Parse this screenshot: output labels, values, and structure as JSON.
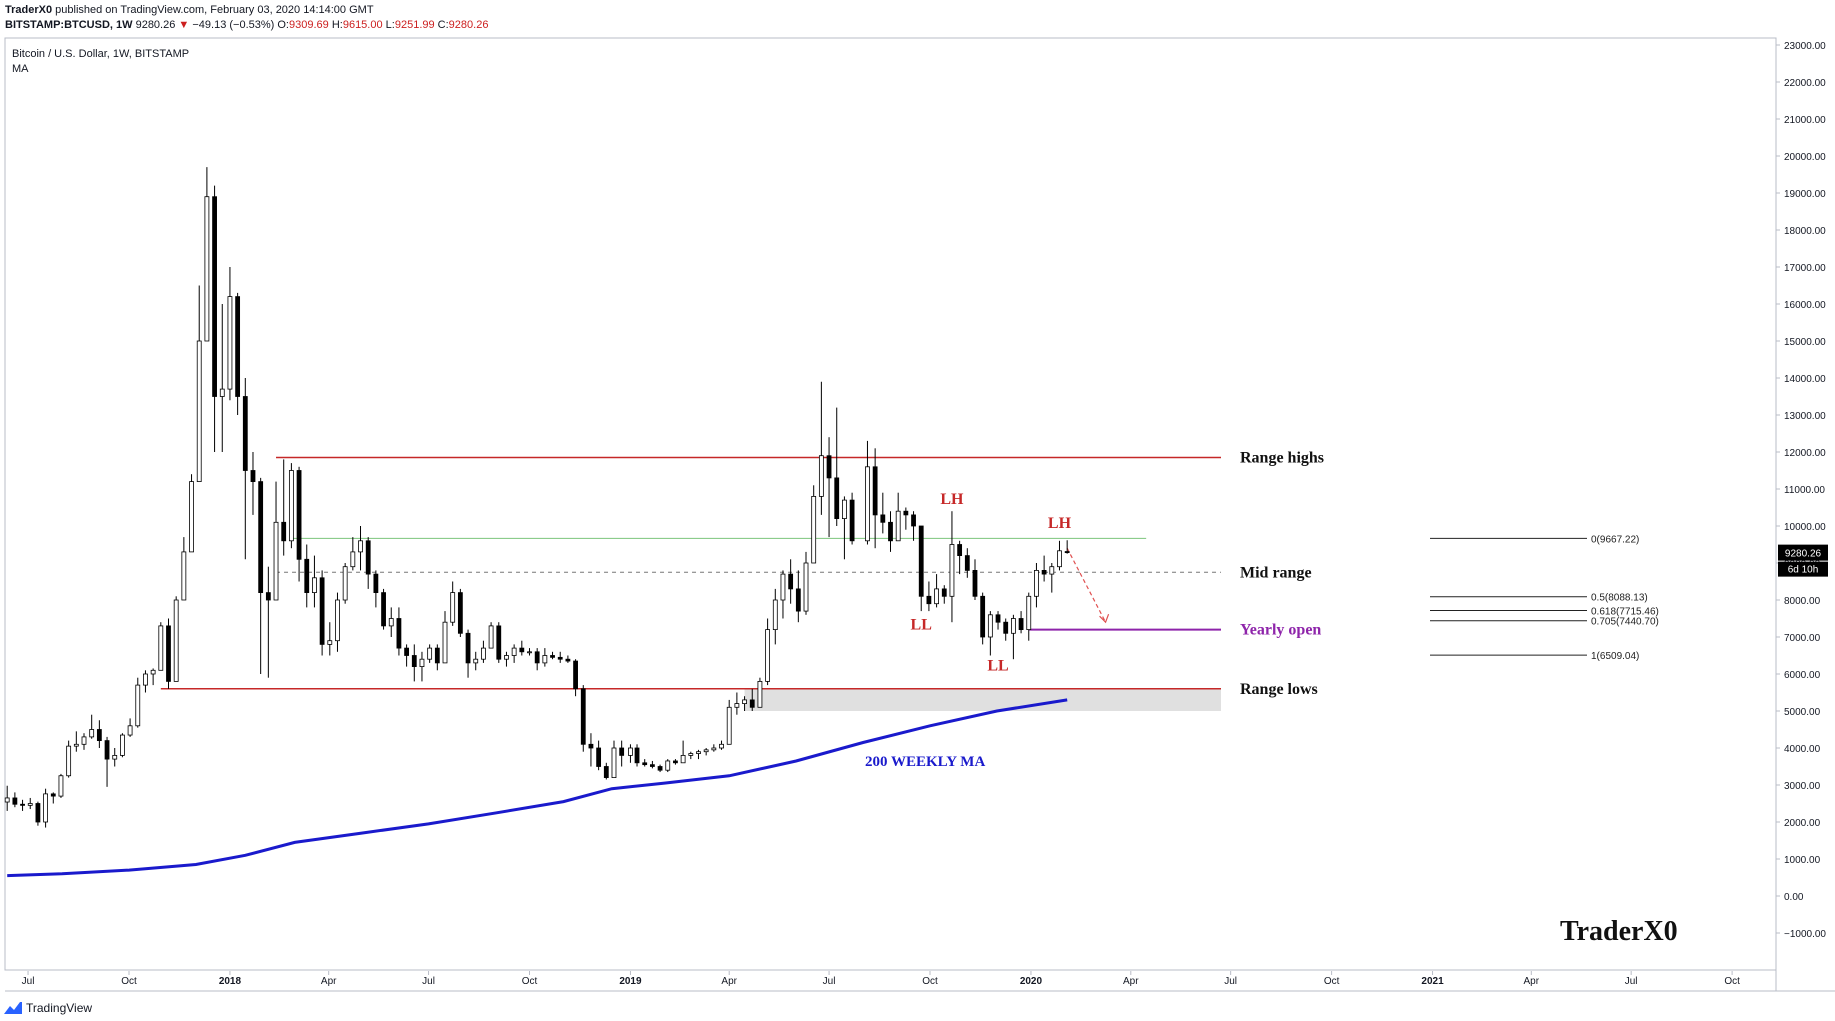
{
  "header": {
    "publisher": "TraderX0",
    "published_text": "published on TradingView.com, February 03, 2020 14:14:00 GMT",
    "symbol": "BITSTAMP:BTCUSD, 1W",
    "last": "9280.26",
    "arrow": "▼",
    "change": "−49.13 (−0.53%)",
    "o_label": "O:",
    "o_value": "9309.69",
    "h_label": "H:",
    "h_value": "9615.00",
    "l_label": "L:",
    "l_value": "9251.99",
    "c_label": "C:",
    "c_value": "9280.26"
  },
  "legend": {
    "title": "Bitcoin / U.S. Dollar, 1W, BITSTAMP",
    "indicator": "MA"
  },
  "footer": {
    "brand": "TradingView"
  },
  "colors": {
    "candle_up": "#ffffff",
    "candle_down": "#000000",
    "wick": "#000000",
    "range_line": "#c62828",
    "yearly_open": "#8e24aa",
    "ma200": "#1a1acc",
    "mid_green": "#7cc47c",
    "support_zone": "#e0e0e0"
  },
  "chart_data": {
    "type": "candlestick",
    "timeframe": "1W",
    "ylim": [
      -1000,
      23000
    ],
    "y_ticks": [
      "23000.00",
      "22000.00",
      "21000.00",
      "20000.00",
      "19000.00",
      "18000.00",
      "17000.00",
      "16000.00",
      "15000.00",
      "14000.00",
      "13000.00",
      "12000.00",
      "11000.00",
      "10000.00",
      "9000.00",
      "8000.00",
      "7000.00",
      "6000.00",
      "5000.00",
      "4000.00",
      "3000.00",
      "2000.00",
      "1000.00",
      "0.00",
      "−1000.00"
    ],
    "x_ticks": [
      "Jul",
      "Oct",
      "2018",
      "Apr",
      "Jul",
      "Oct",
      "2019",
      "Apr",
      "Jul",
      "Oct",
      "2020",
      "Apr",
      "Jul",
      "Oct",
      "2021",
      "Apr",
      "Jul",
      "Oct"
    ],
    "x_tick_dates": [
      "2017-07-01",
      "2017-10-01",
      "2018-01-01",
      "2018-04-01",
      "2018-07-01",
      "2018-10-01",
      "2019-01-01",
      "2019-04-01",
      "2019-07-01",
      "2019-10-01",
      "2020-01-01",
      "2020-04-01",
      "2020-07-01",
      "2020-10-01",
      "2021-01-01",
      "2021-04-01",
      "2021-07-01",
      "2021-10-01"
    ],
    "x_range": [
      "2017-06-10",
      "2021-11-10"
    ],
    "last_price": "9280.26",
    "countdown": "6d 10h",
    "candles": [
      [
        "2017-06-12",
        2540,
        2980,
        2300,
        2650
      ],
      [
        "2017-06-19",
        2650,
        2800,
        2400,
        2480
      ],
      [
        "2017-06-26",
        2480,
        2600,
        2300,
        2450
      ],
      [
        "2017-07-03",
        2450,
        2650,
        2350,
        2500
      ],
      [
        "2017-07-10",
        2500,
        2550,
        1900,
        2000
      ],
      [
        "2017-07-17",
        2000,
        2900,
        1850,
        2760
      ],
      [
        "2017-07-24",
        2760,
        2800,
        2500,
        2700
      ],
      [
        "2017-07-31",
        2700,
        3300,
        2650,
        3250
      ],
      [
        "2017-08-07",
        3250,
        4200,
        3200,
        4050
      ],
      [
        "2017-08-14",
        4050,
        4450,
        3900,
        4100
      ],
      [
        "2017-08-21",
        4100,
        4400,
        3950,
        4300
      ],
      [
        "2017-08-28",
        4300,
        4900,
        4250,
        4500
      ],
      [
        "2017-09-04",
        4500,
        4750,
        4000,
        4200
      ],
      [
        "2017-09-11",
        4200,
        4300,
        2950,
        3700
      ],
      [
        "2017-09-18",
        3700,
        4000,
        3500,
        3800
      ],
      [
        "2017-09-25",
        3800,
        4400,
        3750,
        4350
      ],
      [
        "2017-10-02",
        4350,
        4800,
        4300,
        4600
      ],
      [
        "2017-10-09",
        4600,
        5900,
        4550,
        5700
      ],
      [
        "2017-10-16",
        5700,
        6100,
        5500,
        6000
      ],
      [
        "2017-10-23",
        6000,
        6150,
        5700,
        6100
      ],
      [
        "2017-10-30",
        6100,
        7400,
        6100,
        7300
      ],
      [
        "2017-11-06",
        7300,
        7500,
        5600,
        5800
      ],
      [
        "2017-11-13",
        5800,
        8100,
        5800,
        8000
      ],
      [
        "2017-11-20",
        8000,
        9700,
        8000,
        9300
      ],
      [
        "2017-11-27",
        9300,
        11400,
        9300,
        11200
      ],
      [
        "2017-12-04",
        11200,
        16500,
        11200,
        15000
      ],
      [
        "2017-12-11",
        15000,
        19700,
        15000,
        18900
      ],
      [
        "2017-12-18",
        18900,
        19200,
        12000,
        13500
      ],
      [
        "2017-12-25",
        13500,
        16000,
        12000,
        13700
      ],
      [
        "2018-01-01",
        13700,
        17000,
        13400,
        16200
      ],
      [
        "2018-01-08",
        16200,
        16300,
        13000,
        13500
      ],
      [
        "2018-01-15",
        13500,
        14000,
        9100,
        11500
      ],
      [
        "2018-01-22",
        11500,
        12000,
        10300,
        11200
      ],
      [
        "2018-01-29",
        11200,
        11300,
        6000,
        8200
      ],
      [
        "2018-02-05",
        8200,
        8900,
        5900,
        8000
      ],
      [
        "2018-02-12",
        8000,
        11200,
        8000,
        10100
      ],
      [
        "2018-02-19",
        10100,
        11800,
        9200,
        9600
      ],
      [
        "2018-02-26",
        9600,
        11700,
        9400,
        11500
      ],
      [
        "2018-03-05",
        11500,
        11600,
        8500,
        9100
      ],
      [
        "2018-03-12",
        9100,
        9500,
        7800,
        8200
      ],
      [
        "2018-03-19",
        8200,
        9200,
        7800,
        8600
      ],
      [
        "2018-03-26",
        8600,
        8800,
        6500,
        6800
      ],
      [
        "2018-04-02",
        6800,
        7400,
        6500,
        6900
      ],
      [
        "2018-04-09",
        6900,
        8200,
        6600,
        8000
      ],
      [
        "2018-04-16",
        8000,
        9000,
        7900,
        8900
      ],
      [
        "2018-04-23",
        8900,
        9700,
        8800,
        9300
      ],
      [
        "2018-04-30",
        9300,
        10000,
        8800,
        9600
      ],
      [
        "2018-05-07",
        9600,
        9700,
        8300,
        8700
      ],
      [
        "2018-05-14",
        8700,
        8800,
        7800,
        8200
      ],
      [
        "2018-05-21",
        8200,
        8300,
        7200,
        7300
      ],
      [
        "2018-05-28",
        7300,
        7800,
        7000,
        7500
      ],
      [
        "2018-06-04",
        7500,
        7800,
        6500,
        6700
      ],
      [
        "2018-06-11",
        6700,
        6800,
        6200,
        6500
      ],
      [
        "2018-06-18",
        6500,
        6800,
        5800,
        6200
      ],
      [
        "2018-06-25",
        6200,
        6600,
        5800,
        6400
      ],
      [
        "2018-07-02",
        6400,
        6800,
        6300,
        6700
      ],
      [
        "2018-07-09",
        6700,
        6800,
        6100,
        6300
      ],
      [
        "2018-07-16",
        6300,
        7700,
        6300,
        7400
      ],
      [
        "2018-07-23",
        7400,
        8500,
        7300,
        8200
      ],
      [
        "2018-07-30",
        8200,
        8300,
        7000,
        7100
      ],
      [
        "2018-08-06",
        7100,
        7200,
        5900,
        6300
      ],
      [
        "2018-08-13",
        6300,
        6600,
        6100,
        6400
      ],
      [
        "2018-08-20",
        6400,
        6900,
        6300,
        6700
      ],
      [
        "2018-08-27",
        6700,
        7400,
        6700,
        7300
      ],
      [
        "2018-09-03",
        7300,
        7400,
        6300,
        6400
      ],
      [
        "2018-09-10",
        6400,
        6600,
        6200,
        6500
      ],
      [
        "2018-09-17",
        6500,
        6800,
        6300,
        6700
      ],
      [
        "2018-09-24",
        6700,
        6900,
        6500,
        6600
      ],
      [
        "2018-10-01",
        6600,
        6700,
        6500,
        6600
      ],
      [
        "2018-10-08",
        6600,
        6700,
        6100,
        6300
      ],
      [
        "2018-10-15",
        6300,
        6700,
        6200,
        6500
      ],
      [
        "2018-10-22",
        6500,
        6600,
        6400,
        6450
      ],
      [
        "2018-10-29",
        6450,
        6600,
        6300,
        6400
      ],
      [
        "2018-11-05",
        6400,
        6500,
        6300,
        6350
      ],
      [
        "2018-11-12",
        6350,
        6400,
        5400,
        5600
      ],
      [
        "2018-11-19",
        5600,
        5700,
        3900,
        4100
      ],
      [
        "2018-11-26",
        4100,
        4400,
        3500,
        4000
      ],
      [
        "2018-12-03",
        4000,
        4200,
        3400,
        3500
      ],
      [
        "2018-12-10",
        3500,
        3600,
        3150,
        3200
      ],
      [
        "2018-12-17",
        3200,
        4200,
        3200,
        4000
      ],
      [
        "2018-12-24",
        4000,
        4200,
        3500,
        3800
      ],
      [
        "2019-01-01",
        3800,
        4100,
        3600,
        4000
      ],
      [
        "2019-01-07",
        4000,
        4100,
        3500,
        3600
      ],
      [
        "2019-01-14",
        3600,
        3700,
        3500,
        3550
      ],
      [
        "2019-01-21",
        3550,
        3650,
        3450,
        3500
      ],
      [
        "2019-01-28",
        3500,
        3550,
        3350,
        3400
      ],
      [
        "2019-02-04",
        3400,
        3700,
        3350,
        3650
      ],
      [
        "2019-02-11",
        3650,
        3700,
        3550,
        3600
      ],
      [
        "2019-02-18",
        3600,
        4200,
        3600,
        3800
      ],
      [
        "2019-02-25",
        3800,
        3900,
        3700,
        3850
      ],
      [
        "2019-03-04",
        3850,
        3950,
        3700,
        3900
      ],
      [
        "2019-03-11",
        3900,
        4000,
        3800,
        3950
      ],
      [
        "2019-03-18",
        3950,
        4100,
        3900,
        4000
      ],
      [
        "2019-03-25",
        4000,
        4200,
        3950,
        4100
      ],
      [
        "2019-04-01",
        4100,
        5300,
        4100,
        5100
      ],
      [
        "2019-04-08",
        5100,
        5500,
        4900,
        5200
      ],
      [
        "2019-04-15",
        5200,
        5400,
        5000,
        5300
      ],
      [
        "2019-04-22",
        5300,
        5600,
        5000,
        5100
      ],
      [
        "2019-04-29",
        5100,
        5900,
        5100,
        5800
      ],
      [
        "2019-05-06",
        5800,
        7500,
        5700,
        7200
      ],
      [
        "2019-05-13",
        7200,
        8300,
        6800,
        8000
      ],
      [
        "2019-05-20",
        8000,
        8800,
        7500,
        8700
      ],
      [
        "2019-05-27",
        8700,
        9100,
        7900,
        8300
      ],
      [
        "2019-06-03",
        8300,
        8800,
        7400,
        7700
      ],
      [
        "2019-06-10",
        7700,
        9300,
        7600,
        9000
      ],
      [
        "2019-06-17",
        9000,
        11100,
        9000,
        10800
      ],
      [
        "2019-06-24",
        10800,
        13900,
        10300,
        11900
      ],
      [
        "2019-07-01",
        11900,
        12400,
        9700,
        11300
      ],
      [
        "2019-07-08",
        11300,
        13200,
        10000,
        10200
      ],
      [
        "2019-07-15",
        10200,
        10800,
        9100,
        10700
      ],
      [
        "2019-07-22",
        10700,
        10900,
        9500,
        9600
      ],
      [
        "2019-08-05",
        9600,
        12300,
        9500,
        11600
      ],
      [
        "2019-08-12",
        11600,
        12100,
        9400,
        10300
      ],
      [
        "2019-08-19",
        10300,
        10900,
        9800,
        10100
      ],
      [
        "2019-08-26",
        10100,
        10400,
        9300,
        9600
      ],
      [
        "2019-09-02",
        9600,
        10900,
        9600,
        10400
      ],
      [
        "2019-09-09",
        10400,
        10500,
        9900,
        10300
      ],
      [
        "2019-09-16",
        10300,
        10400,
        9600,
        10000
      ],
      [
        "2019-09-23",
        10000,
        10000,
        7700,
        8100
      ],
      [
        "2019-09-30",
        8100,
        8500,
        7700,
        7900
      ],
      [
        "2019-10-07",
        7900,
        8700,
        7800,
        8300
      ],
      [
        "2019-10-14",
        8300,
        8400,
        7900,
        8100
      ],
      [
        "2019-10-21",
        8100,
        10400,
        7400,
        9500
      ],
      [
        "2019-10-28",
        9500,
        9600,
        8700,
        9200
      ],
      [
        "2019-11-04",
        9200,
        9400,
        8600,
        8800
      ],
      [
        "2019-11-11",
        8800,
        9100,
        8000,
        8100
      ],
      [
        "2019-11-18",
        8100,
        8200,
        6800,
        7000
      ],
      [
        "2019-11-25",
        7000,
        7700,
        6500,
        7600
      ],
      [
        "2019-12-02",
        7600,
        7700,
        7200,
        7400
      ],
      [
        "2019-12-09",
        7400,
        7500,
        6900,
        7100
      ],
      [
        "2019-12-16",
        7100,
        7600,
        6400,
        7500
      ],
      [
        "2019-12-23",
        7500,
        7700,
        7100,
        7200
      ],
      [
        "2019-12-30",
        7200,
        8200,
        6900,
        8100
      ],
      [
        "2020-01-06",
        8100,
        9000,
        7800,
        8800
      ],
      [
        "2020-01-13",
        8800,
        9200,
        8500,
        8700
      ],
      [
        "2020-01-20",
        8700,
        9000,
        8200,
        8900
      ],
      [
        "2020-01-27",
        8900,
        9600,
        8800,
        9330
      ],
      [
        "2020-02-03",
        9309.69,
        9615,
        9251.99,
        9280.26
      ]
    ],
    "ma200": [
      [
        "2017-06-12",
        550
      ],
      [
        "2017-08-01",
        600
      ],
      [
        "2017-10-01",
        700
      ],
      [
        "2017-12-01",
        850
      ],
      [
        "2018-01-15",
        1100
      ],
      [
        "2018-03-01",
        1450
      ],
      [
        "2018-05-01",
        1700
      ],
      [
        "2018-07-01",
        1950
      ],
      [
        "2018-09-01",
        2250
      ],
      [
        "2018-11-01",
        2550
      ],
      [
        "2018-12-15",
        2900
      ],
      [
        "2019-02-01",
        3050
      ],
      [
        "2019-04-01",
        3250
      ],
      [
        "2019-06-01",
        3650
      ],
      [
        "2019-08-01",
        4150
      ],
      [
        "2019-10-01",
        4600
      ],
      [
        "2019-12-01",
        5000
      ],
      [
        "2020-02-03",
        5300
      ]
    ],
    "annotations": {
      "range_highs": {
        "value": 11850,
        "label": "Range highs",
        "from": "2018-02-12"
      },
      "range_lows": {
        "value": 5600,
        "label": "Range lows",
        "from": "2017-10-30"
      },
      "mid_range": {
        "value": 8750,
        "label": "Mid range",
        "from": "2018-02-12"
      },
      "green_level": {
        "value": 9667,
        "from": "2018-02-26",
        "to": "2020-04-15"
      },
      "yearly_open": {
        "value": 7200,
        "label": "Yearly open",
        "from": "2019-12-30"
      },
      "support_zone": {
        "top": 5600,
        "bottom": 5000,
        "from": "2019-04-15"
      },
      "ma_label": "200 WEEKLY MA",
      "structure_labels": [
        {
          "text": "LH",
          "date": "2019-10-21",
          "value": 10600
        },
        {
          "text": "LL",
          "date": "2019-09-23",
          "value": 7200
        },
        {
          "text": "LL",
          "date": "2019-12-02",
          "value": 6100
        },
        {
          "text": "LH",
          "date": "2020-01-27",
          "value": 9950
        }
      ],
      "projection": {
        "from_date": "2020-02-03",
        "from_value": 9400,
        "to_date": "2020-03-09",
        "to_value": 7400
      },
      "fib_levels": [
        {
          "label": "0(9667.22)",
          "value": 9667.22
        },
        {
          "label": "0.5(8088.13)",
          "value": 8088.13
        },
        {
          "label": "0.618(7715.46)",
          "value": 7715.46
        },
        {
          "label": "0.705(7440.70)",
          "value": 7440.7
        },
        {
          "label": "1(6509.04)",
          "value": 6509.04
        }
      ],
      "watermark": "TraderX0"
    }
  }
}
